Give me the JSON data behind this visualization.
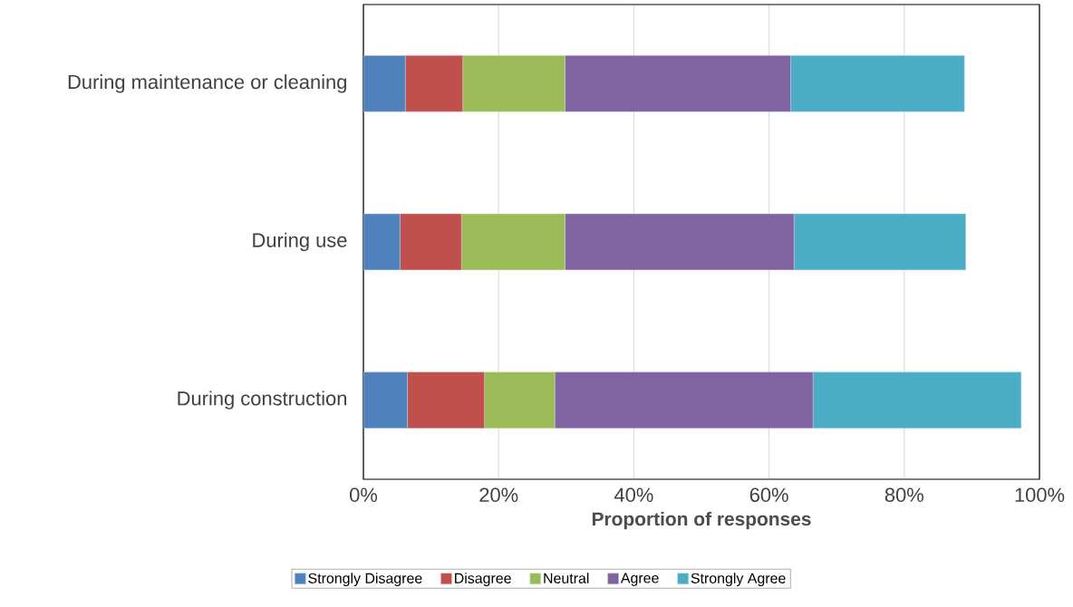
{
  "chart_data": {
    "type": "bar",
    "orientation": "horizontal",
    "stacked": true,
    "xlabel": "Proportion of responses",
    "categories": [
      "During maintenance or cleaning",
      "During use",
      "During construction"
    ],
    "series": [
      {
        "name": "Strongly Disagree",
        "color": "#4f81bd",
        "values": [
          6.2,
          5.4,
          6.5
        ]
      },
      {
        "name": "Disagree",
        "color": "#c0504d",
        "values": [
          8.5,
          9.1,
          11.4
        ]
      },
      {
        "name": "Neutral",
        "color": "#9bbb59",
        "values": [
          15.1,
          15.3,
          10.4
        ]
      },
      {
        "name": "Agree",
        "color": "#8064a2",
        "values": [
          33.4,
          33.9,
          38.2
        ]
      },
      {
        "name": "Strongly Agree",
        "color": "#4bacc6",
        "values": [
          25.7,
          25.4,
          30.8
        ]
      }
    ],
    "xlim": [
      0,
      100
    ],
    "xticks": [
      {
        "value": 0,
        "label": "0%"
      },
      {
        "value": 20,
        "label": "20%"
      },
      {
        "value": 40,
        "label": "40%"
      },
      {
        "value": 60,
        "label": "60%"
      },
      {
        "value": 80,
        "label": "80%"
      },
      {
        "value": 100,
        "label": "100%"
      }
    ],
    "grid": "x",
    "legend": "bottom"
  }
}
